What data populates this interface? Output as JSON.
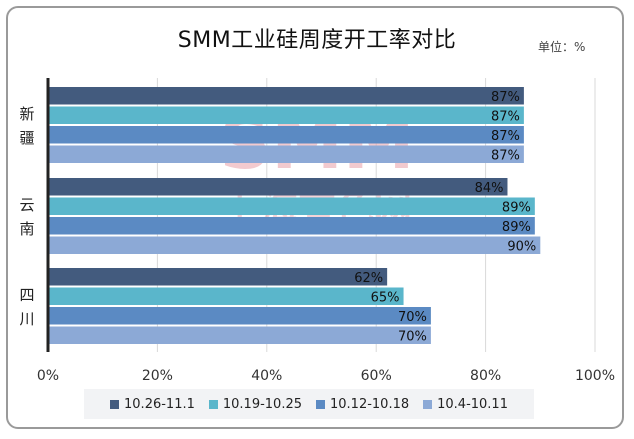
{
  "title": "SMM工业硅周度开工率对比",
  "unit_label": "单位：%",
  "watermark": {
    "line1": "SMM",
    "line2": "上海有色网"
  },
  "chart_data": {
    "type": "bar",
    "orientation": "horizontal",
    "title": "SMM工业硅周度开工率对比",
    "categories": [
      "新疆",
      "云南",
      "四川"
    ],
    "series": [
      {
        "name": "10.26-11.1",
        "color": "#435b7e",
        "values": [
          87,
          84,
          62
        ]
      },
      {
        "name": "10.19-10.25",
        "color": "#5ab6cb",
        "values": [
          87,
          89,
          65
        ]
      },
      {
        "name": "10.12-10.18",
        "color": "#5b8ac3",
        "values": [
          87,
          89,
          70
        ]
      },
      {
        "name": "10.4-10.11",
        "color": "#8ca9d6",
        "values": [
          87,
          90,
          70
        ]
      }
    ],
    "xlim": [
      0,
      100
    ],
    "x_ticks": [
      "0%",
      "20%",
      "40%",
      "60%",
      "80%",
      "100%"
    ],
    "value_suffix": "%",
    "grid": true,
    "legend_position": "bottom"
  }
}
